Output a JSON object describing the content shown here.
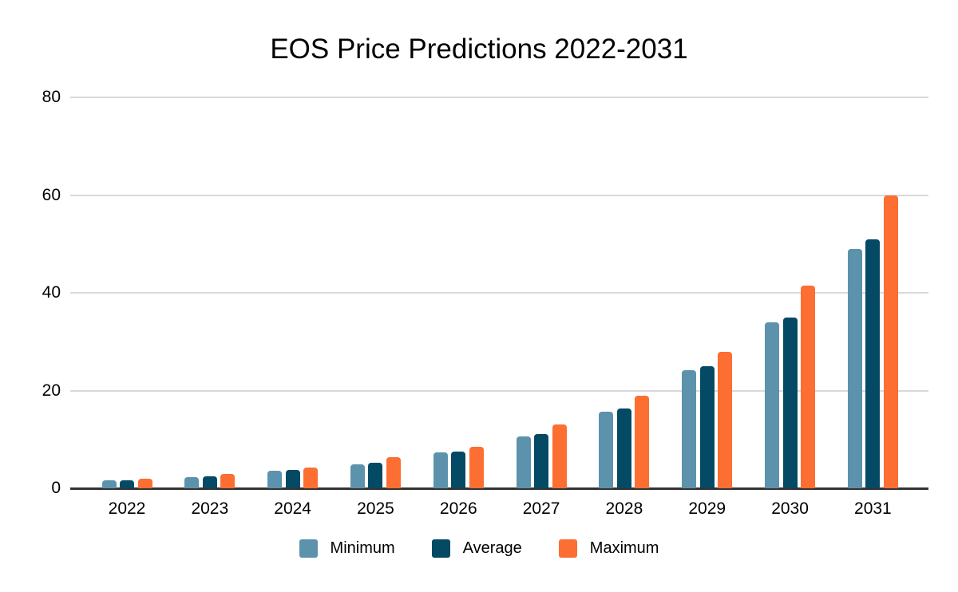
{
  "chart_data": {
    "type": "bar",
    "title": "EOS Price Predictions 2022-2031",
    "categories": [
      "2022",
      "2023",
      "2024",
      "2025",
      "2026",
      "2027",
      "2028",
      "2029",
      "2030",
      "2031"
    ],
    "series": [
      {
        "name": "Minimum",
        "color": "#5c92ac",
        "values": [
          1.6,
          2.3,
          3.6,
          4.9,
          7.4,
          10.6,
          15.7,
          24.2,
          34,
          49
        ]
      },
      {
        "name": "Average",
        "color": "#054a64",
        "values": [
          1.7,
          2.4,
          3.7,
          5.3,
          7.5,
          11.1,
          16.3,
          25,
          35,
          51
        ]
      },
      {
        "name": "Maximum",
        "color": "#fc6e32",
        "values": [
          2.0,
          2.9,
          4.2,
          6.3,
          8.5,
          13.1,
          18.9,
          27.9,
          41.5,
          60
        ]
      }
    ],
    "xlabel": "",
    "ylabel": "",
    "ylim": [
      0,
      80
    ],
    "yticks": [
      0,
      20,
      40,
      60,
      80
    ],
    "grid": true,
    "legend_position": "bottom",
    "axis_color": "#333333",
    "gridline_color": "#d9d9d9",
    "text_color": "#000000",
    "background_color": "#ffffff"
  }
}
